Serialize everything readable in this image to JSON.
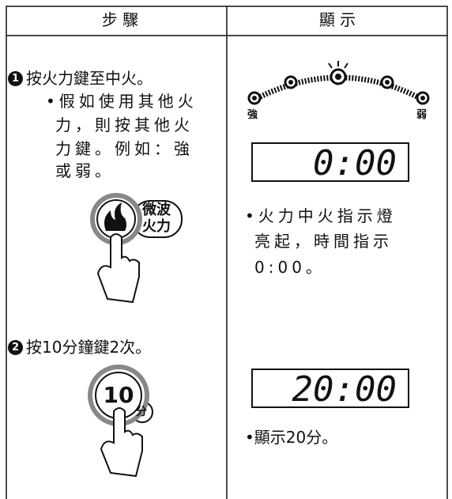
{
  "header": {
    "step": "步 驟",
    "display": "顯 示"
  },
  "steps": [
    {
      "number": "1",
      "instruction": "按火力鍵至中火。",
      "note_lines": [
        "•假如使用其他火",
        "力，則按其他火",
        "力鍵。例如：強",
        "或弱。"
      ],
      "button_lines": [
        "微波",
        "火力"
      ],
      "display": {
        "power_labels": [
          "強",
          "弱"
        ],
        "lcd": "0:00",
        "note_lines": [
          "•火力中火指示燈",
          "亮起，時間指示",
          "0:00。"
        ]
      }
    },
    {
      "number": "2",
      "instruction": "按10分鐘鍵2次。",
      "button_lines": [
        "10",
        "分"
      ],
      "display": {
        "lcd": "20:00",
        "note_lines": [
          "•顯示20分。"
        ]
      }
    }
  ]
}
